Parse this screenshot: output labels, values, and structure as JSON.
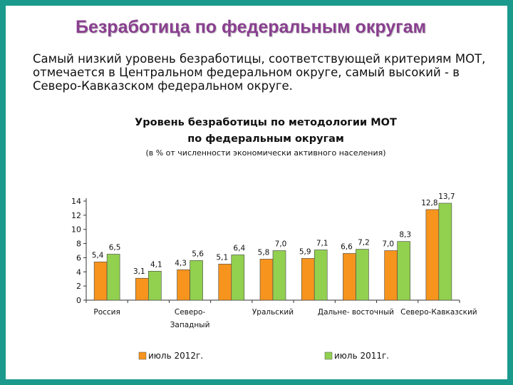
{
  "slide": {
    "title": "Безработица по федеральным округам",
    "intro": "Самый низкий уровень безработицы, соответствующей критериям МОТ, отмечается в Центральном федеральном округе, самый высокий - в Северо-Кавказском федеральном округе."
  },
  "chart_data": {
    "type": "bar",
    "title_line1": "Уровень безработицы по методологии МОТ",
    "title_line2": "по федеральным округам",
    "subtitle": "(в % от численности экономически активного населения)",
    "categories": [
      "Россия",
      "",
      "Северо-Западный",
      "",
      "Уральский",
      "",
      "Дальне- восточный",
      "",
      "Северо-Кавказский"
    ],
    "category_labels": [
      {
        "index": 0,
        "lines": [
          "Россия"
        ]
      },
      {
        "index": 2,
        "lines": [
          "Северо-",
          "Западный"
        ]
      },
      {
        "index": 4,
        "lines": [
          "Уральский"
        ]
      },
      {
        "index": 6,
        "lines": [
          "Дальне- восточный"
        ]
      },
      {
        "index": 8,
        "lines": [
          "Северо-Кавказский"
        ]
      }
    ],
    "series": [
      {
        "name": "июль 2012г.",
        "color": "#f7941d",
        "values": [
          5.4,
          3.1,
          4.3,
          5.1,
          5.8,
          5.9,
          6.6,
          7.0,
          12.8
        ]
      },
      {
        "name": "июль 2011г.",
        "color": "#92d050",
        "values": [
          6.5,
          4.1,
          5.6,
          6.4,
          7.0,
          7.1,
          7.2,
          8.3,
          13.7
        ]
      }
    ],
    "value_labels": {
      "series0": [
        "5,4",
        "3,1",
        "4,3",
        "5,1",
        "5,8",
        "5,9",
        "6,6",
        "7,0",
        "12,8"
      ],
      "series1": [
        "6,5",
        "4,1",
        "5,6",
        "6,4",
        "7,0",
        "7,1",
        "7,2",
        "8,3",
        "13,7"
      ]
    },
    "ylim": [
      0,
      14
    ],
    "yticks": [
      0,
      2,
      4,
      6,
      8,
      10,
      12,
      14
    ],
    "legend_position": "bottom",
    "xlabel": "",
    "ylabel": ""
  }
}
